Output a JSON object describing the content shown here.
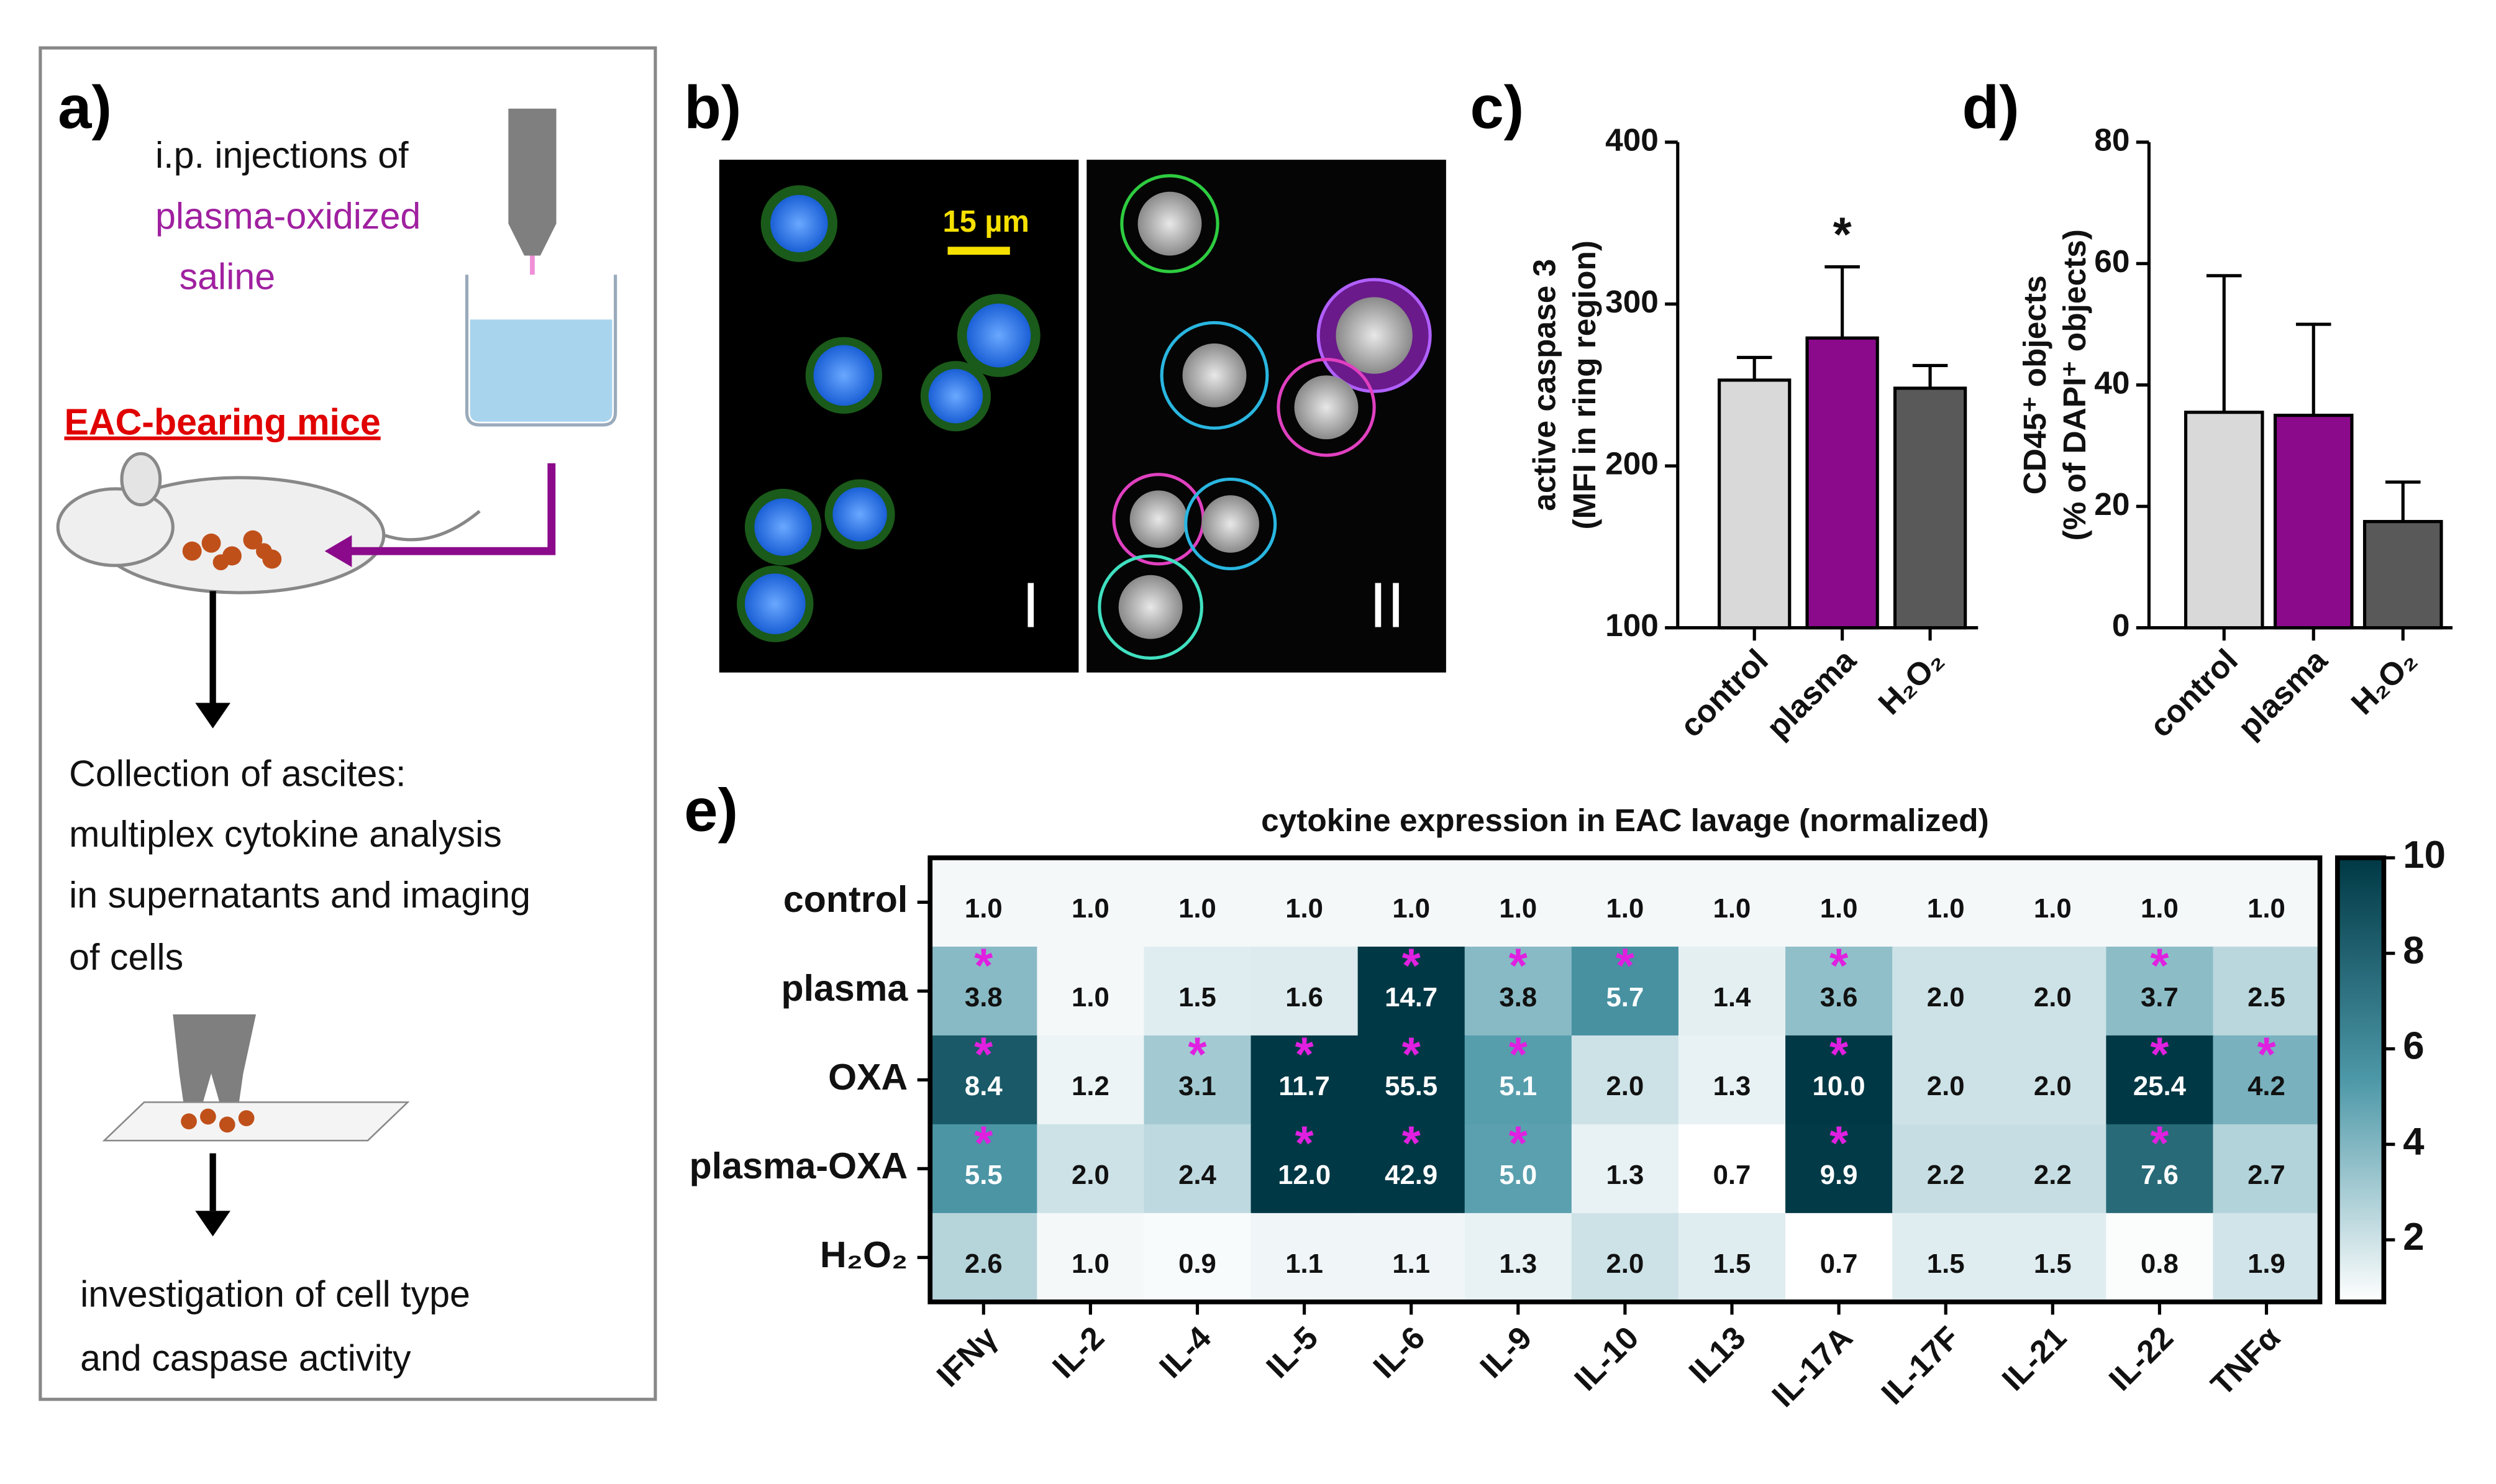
{
  "panel_a": {
    "label": "a)",
    "injection": [
      "i.p. injections of",
      "plasma-oxidized",
      "saline"
    ],
    "mice": "EAC-bearing mice",
    "collection": [
      "Collection of ascites:",
      "multiplex cytokine analysis",
      "in supernatants and imaging",
      "of cells"
    ],
    "investigation": [
      "investigation of cell type",
      "and caspase activity"
    ]
  },
  "panel_b": {
    "label": "b)",
    "scale_bar": "15 µm",
    "image_1": "I",
    "image_2": "II"
  },
  "chart_data": [
    {
      "type": "bar",
      "panel": "c)",
      "ylabel": [
        "active caspase 3",
        "(MFI in ring region)"
      ],
      "categories": [
        "control",
        "plasma",
        "H₂O₂"
      ],
      "values": [
        253,
        279,
        248
      ],
      "errors": [
        14,
        44,
        14
      ],
      "colors": [
        "#d9d9d9",
        "#8b0a8b",
        "#595959"
      ],
      "ylim": [
        100,
        400
      ],
      "yticks": [
        100,
        200,
        300,
        400
      ],
      "annotations": [
        {
          "category": "plasma",
          "text": "*"
        }
      ]
    },
    {
      "type": "bar",
      "panel": "d)",
      "ylabel": [
        "CD45⁺ objects",
        "(% of DAPI⁺ objects)"
      ],
      "categories": [
        "control",
        "plasma",
        "H₂O₂"
      ],
      "values": [
        35.5,
        35,
        17.5
      ],
      "errors": [
        22.5,
        15,
        6.5
      ],
      "colors": [
        "#d9d9d9",
        "#8b0a8b",
        "#595959"
      ],
      "ylim": [
        0,
        80
      ],
      "yticks": [
        0,
        20,
        40,
        60,
        80
      ]
    },
    {
      "type": "heatmap",
      "panel": "e)",
      "title": "cytokine expression in EAC lavage (normalized)",
      "rows": [
        "control",
        "plasma",
        "OXA",
        "plasma-OXA",
        "H₂O₂"
      ],
      "columns": [
        "IFNγ",
        "IL-2",
        "IL-4",
        "IL-5",
        "IL-6",
        "IL-9",
        "IL-10",
        "IL13",
        "IL-17A",
        "IL-17F",
        "IL-21",
        "IL-22",
        "TNFα"
      ],
      "values": [
        [
          1,
          1,
          1,
          1,
          1,
          1,
          1,
          1,
          1,
          1,
          1,
          1,
          1
        ],
        [
          3.8,
          1,
          1.5,
          1.6,
          14.7,
          3.8,
          5.7,
          1.4,
          3.6,
          2,
          2,
          3.7,
          2.5
        ],
        [
          8.4,
          1.2,
          3.1,
          11.7,
          55.5,
          5.1,
          2,
          1.3,
          10,
          2,
          2,
          25.4,
          4.2
        ],
        [
          5.5,
          2,
          2.4,
          12,
          42.9,
          5,
          1.3,
          0.7,
          9.9,
          2.2,
          2.2,
          7.6,
          2.7
        ],
        [
          2.6,
          1,
          0.9,
          1.1,
          1.1,
          1.3,
          2,
          1.5,
          0.7,
          1.5,
          1.5,
          0.8,
          1.9
        ]
      ],
      "value_labels": [
        [
          "1.0",
          "1.0",
          "1.0",
          "1.0",
          "1.0",
          "1.0",
          "1.0",
          "1.0",
          "1.0",
          "1.0",
          "1.0",
          "1.0",
          "1.0"
        ],
        [
          "3.8",
          "1.0",
          "1.5",
          "1.6",
          "14.7",
          "3.8",
          "5.7",
          "1.4",
          "3.6",
          "2.0",
          "2.0",
          "3.7",
          "2.5"
        ],
        [
          "8.4",
          "1.2",
          "3.1",
          "11.7",
          "55.5",
          "5.1",
          "2.0",
          "1.3",
          "10.0",
          "2.0",
          "2.0",
          "25.4",
          "4.2"
        ],
        [
          "5.5",
          "2.0",
          "2.4",
          "12.0",
          "42.9",
          "5.0",
          "1.3",
          "0.7",
          "9.9",
          "2.2",
          "2.2",
          "7.6",
          "2.7"
        ],
        [
          "2.6",
          "1.0",
          "0.9",
          "1.1",
          "1.1",
          "1.3",
          "2.0",
          "1.5",
          "0.7",
          "1.5",
          "1.5",
          "0.8",
          "1.9"
        ]
      ],
      "stars": [
        [
          null,
          null,
          null,
          null,
          null,
          null,
          null,
          null,
          null,
          null,
          null,
          null,
          null
        ],
        [
          "*",
          null,
          null,
          null,
          "*",
          "*",
          "*",
          null,
          "*",
          null,
          null,
          "*",
          null
        ],
        [
          "*",
          null,
          "*",
          "*",
          "*",
          "*",
          null,
          null,
          "*",
          null,
          null,
          "*",
          "*"
        ],
        [
          "*",
          null,
          null,
          "*",
          "*",
          "*",
          null,
          null,
          "*",
          null,
          null,
          "*",
          null
        ],
        [
          null,
          null,
          null,
          null,
          null,
          null,
          null,
          null,
          null,
          null,
          null,
          null,
          null
        ]
      ],
      "star_color": "#e020e0",
      "colormap": [
        "#ffffff",
        "#4d98a8",
        "#003845"
      ],
      "clim": [
        0.7,
        10
      ],
      "cticks": [
        2,
        4,
        6,
        8,
        10
      ]
    }
  ]
}
